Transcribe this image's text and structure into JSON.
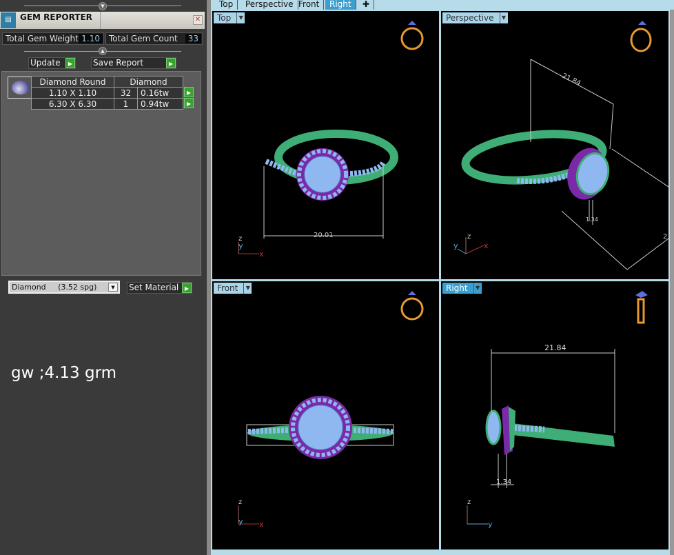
{
  "panel": {
    "title": "GEM REPORTER",
    "total_weight_label": "Total Gem Weight",
    "total_weight": "1.10",
    "total_count_label": "Total Gem Count",
    "total_count": "33",
    "update_label": "Update",
    "save_report_label": "Save Report",
    "table": {
      "headers": [
        "Diamond Round",
        "Diamond"
      ],
      "rows": [
        {
          "size": "1.10 X 1.10",
          "count": "32",
          "weight": "0.16tw"
        },
        {
          "size": "6.30 X 6.30",
          "count": "1",
          "weight": "0.94tw"
        }
      ]
    },
    "material": "Diamond     (3.52 spg)",
    "set_material_label": "Set Material"
  },
  "note": "gw ;4.13 grm",
  "tabs": [
    {
      "label": "Top"
    },
    {
      "label": "Perspective"
    },
    {
      "label": "Front"
    },
    {
      "label": "Right",
      "active": true
    },
    {
      "label": "✚"
    }
  ],
  "viewports": {
    "top": {
      "label": "Top",
      "dim": "20.01"
    },
    "perspective": {
      "label": "Perspective",
      "dim1": "21.84",
      "dim2": "1.34",
      "dim3": "2"
    },
    "front": {
      "label": "Front"
    },
    "right": {
      "label": "Right",
      "dim1": "21.84",
      "dim2": "1.34"
    }
  },
  "colors": {
    "metal": "#3fae76",
    "gem": "#8fb8f0",
    "halo": "#7a2aa8",
    "active_tab": "#3a9fd0"
  }
}
